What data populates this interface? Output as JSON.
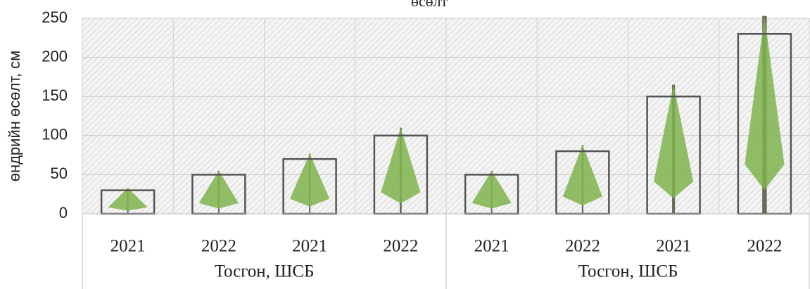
{
  "chart_data": {
    "type": "bar",
    "title": "өсөлт",
    "y_label": "өндрийн өсөлт, см",
    "categories": [
      "2021",
      "2022",
      "2021",
      "2022",
      "2021",
      "2022",
      "2021",
      "2022"
    ],
    "groups": [
      "Тосгон, ШСБ",
      "Тосгон, ШСБ"
    ],
    "values": [
      30,
      50,
      70,
      100,
      50,
      80,
      150,
      230
    ],
    "color": "#555555",
    "ylim": [
      0,
      250
    ],
    "yticks": [
      0,
      50,
      100,
      150,
      200,
      250
    ],
    "grid": true
  }
}
